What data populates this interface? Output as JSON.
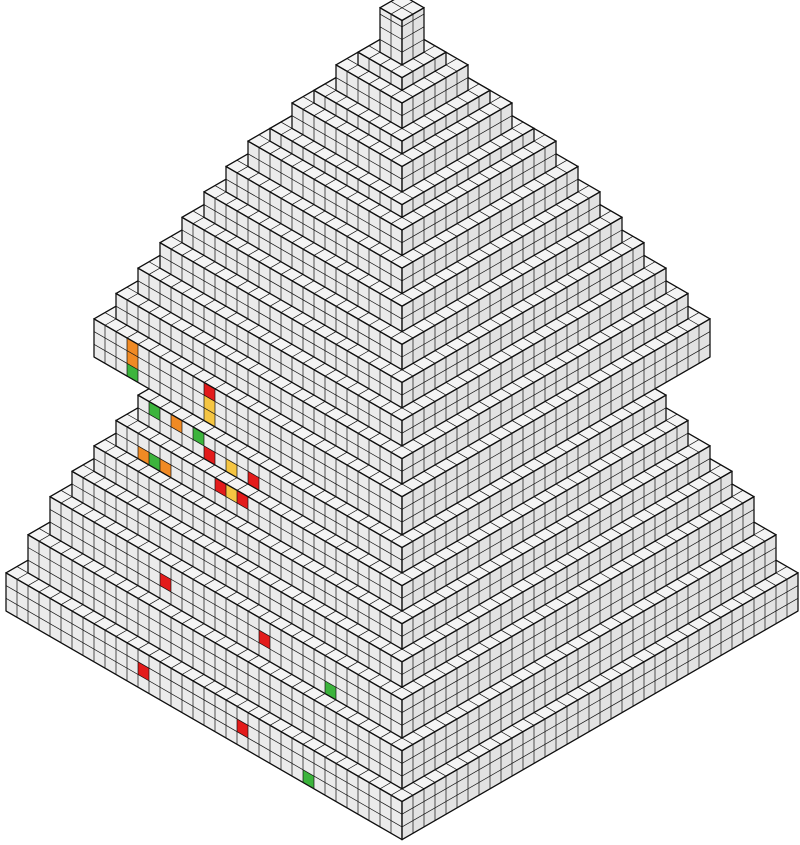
{
  "scene": {
    "subject": "voxel-stepped-pyramid",
    "colors": {
      "background": "#ffffff",
      "cube_face": "#ffffff",
      "cube_edge": "#111111",
      "top_shade": "#f4f4f4",
      "left_shade": "#ebebeb",
      "right_shade": "#e2e2e2",
      "accent_yellow": "#f5c542",
      "accent_orange": "#f08a24",
      "accent_red": "#e31b1b",
      "accent_green": "#3cb43c"
    }
  }
}
